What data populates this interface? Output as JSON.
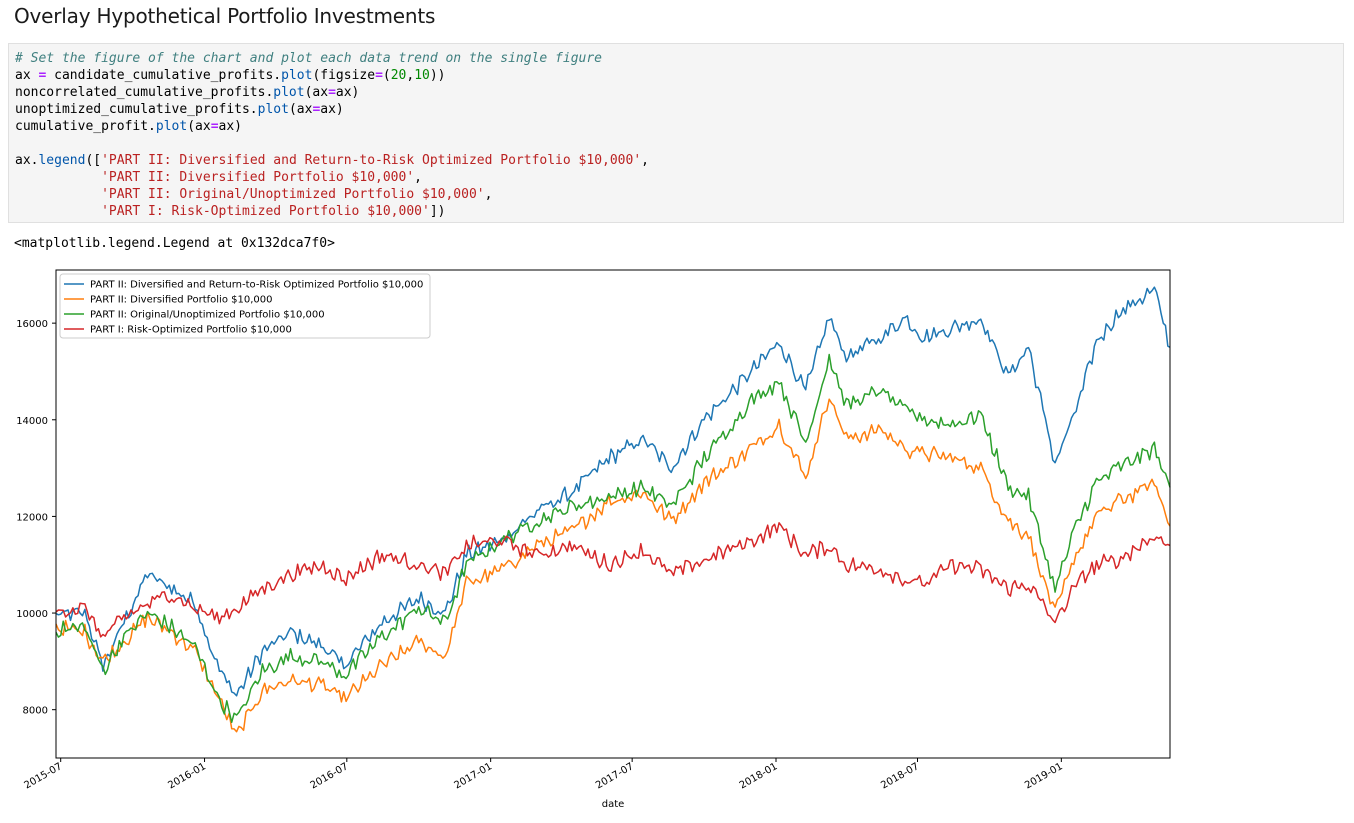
{
  "heading": "Overlay Hypothetical Portfolio Investments",
  "code_lines": [
    [
      {
        "t": "# Set the figure of the chart and plot each data trend on the single figure",
        "c": "cm"
      }
    ],
    [
      {
        "t": "ax "
      },
      {
        "t": "=",
        "c": "op"
      },
      {
        "t": " candidate_cumulative_profits."
      },
      {
        "t": "plot",
        "c": "nb"
      },
      {
        "t": "(figsize"
      },
      {
        "t": "=",
        "c": "op"
      },
      {
        "t": "("
      },
      {
        "t": "20",
        "c": "num"
      },
      {
        "t": ","
      },
      {
        "t": "10",
        "c": "num"
      },
      {
        "t": "))"
      }
    ],
    [
      {
        "t": "noncorrelated_cumulative_profits."
      },
      {
        "t": "plot",
        "c": "nb"
      },
      {
        "t": "(ax"
      },
      {
        "t": "=",
        "c": "op"
      },
      {
        "t": "ax)"
      }
    ],
    [
      {
        "t": "unoptimized_cumulative_profits."
      },
      {
        "t": "plot",
        "c": "nb"
      },
      {
        "t": "(ax"
      },
      {
        "t": "=",
        "c": "op"
      },
      {
        "t": "ax)"
      }
    ],
    [
      {
        "t": "cumulative_profit."
      },
      {
        "t": "plot",
        "c": "nb"
      },
      {
        "t": "(ax"
      },
      {
        "t": "=",
        "c": "op"
      },
      {
        "t": "ax)"
      }
    ],
    [],
    [
      {
        "t": "ax."
      },
      {
        "t": "legend",
        "c": "nb"
      },
      {
        "t": "(["
      },
      {
        "t": "'PART II: Diversified and Return-to-Risk Optimized Portfolio $10,000'",
        "c": "str"
      },
      {
        "t": ","
      }
    ],
    [
      {
        "t": "           "
      },
      {
        "t": "'PART II: Diversified Portfolio $10,000'",
        "c": "str"
      },
      {
        "t": ","
      }
    ],
    [
      {
        "t": "           "
      },
      {
        "t": "'PART II: Original/Unoptimized Portfolio $10,000'",
        "c": "str"
      },
      {
        "t": ","
      }
    ],
    [
      {
        "t": "           "
      },
      {
        "t": "'PART I: Risk-Optimized Portfolio $10,000'",
        "c": "str"
      },
      {
        "t": "])"
      }
    ]
  ],
  "output_text": "<matplotlib.legend.Legend at 0x132dca7f0>",
  "chart_data": {
    "type": "line",
    "xlabel": "date",
    "ylabel": "",
    "title": "",
    "x_range": [
      "2015-06-25",
      "2019-05-20"
    ],
    "ylim": [
      7000,
      17100
    ],
    "yticks": [
      8000,
      10000,
      12000,
      14000,
      16000
    ],
    "xticks": [
      "2015-07",
      "2016-01",
      "2016-07",
      "2017-01",
      "2017-07",
      "2018-01",
      "2018-07",
      "2019-01"
    ],
    "grid": false,
    "legend": "upper-left",
    "series": [
      {
        "name": "PART II: Diversified and Return-to-Risk Optimized Portfolio $10,000",
        "color": "#1f77b4",
        "points": [
          [
            "2015-06-25",
            9950
          ],
          [
            "2015-08-01",
            10000
          ],
          [
            "2015-08-24",
            8900
          ],
          [
            "2015-09-20",
            9800
          ],
          [
            "2015-10-20",
            10800
          ],
          [
            "2015-11-20",
            10500
          ],
          [
            "2015-12-20",
            10200
          ],
          [
            "2016-01-20",
            8800
          ],
          [
            "2016-02-11",
            8300
          ],
          [
            "2016-03-15",
            9200
          ],
          [
            "2016-04-20",
            9600
          ],
          [
            "2016-06-01",
            9300
          ],
          [
            "2016-06-27",
            8900
          ],
          [
            "2016-08-15",
            9800
          ],
          [
            "2016-10-01",
            10300
          ],
          [
            "2016-11-04",
            10000
          ],
          [
            "2016-12-01",
            11200
          ],
          [
            "2017-01-15",
            11500
          ],
          [
            "2017-03-01",
            12100
          ],
          [
            "2017-04-15",
            12500
          ],
          [
            "2017-06-01",
            13200
          ],
          [
            "2017-07-15",
            13600
          ],
          [
            "2017-08-20",
            13000
          ],
          [
            "2017-10-01",
            14000
          ],
          [
            "2017-12-01",
            15000
          ],
          [
            "2018-01-05",
            15600
          ],
          [
            "2018-02-08",
            14600
          ],
          [
            "2018-03-10",
            16100
          ],
          [
            "2018-04-01",
            15300
          ],
          [
            "2018-05-15",
            15700
          ],
          [
            "2018-06-15",
            16100
          ],
          [
            "2018-07-10",
            15700
          ],
          [
            "2018-08-15",
            15900
          ],
          [
            "2018-09-20",
            16100
          ],
          [
            "2018-10-25",
            14900
          ],
          [
            "2018-11-20",
            15500
          ],
          [
            "2018-12-24",
            13100
          ],
          [
            "2019-01-20",
            14200
          ],
          [
            "2019-02-15",
            15600
          ],
          [
            "2019-03-15",
            16200
          ],
          [
            "2019-04-30",
            16700
          ],
          [
            "2019-05-20",
            15500
          ]
        ]
      },
      {
        "name": "PART II: Diversified Portfolio $10,000",
        "color": "#ff7f0e",
        "points": [
          [
            "2015-06-25",
            9700
          ],
          [
            "2015-08-01",
            9600
          ],
          [
            "2015-08-24",
            9000
          ],
          [
            "2015-09-20",
            9400
          ],
          [
            "2015-10-20",
            9900
          ],
          [
            "2015-11-20",
            9600
          ],
          [
            "2015-12-20",
            9200
          ],
          [
            "2016-01-20",
            8200
          ],
          [
            "2016-02-11",
            7450
          ],
          [
            "2016-03-15",
            8400
          ],
          [
            "2016-04-20",
            8600
          ],
          [
            "2016-06-01",
            8500
          ],
          [
            "2016-06-27",
            8200
          ],
          [
            "2016-08-15",
            8900
          ],
          [
            "2016-10-01",
            9400
          ],
          [
            "2016-11-04",
            9100
          ],
          [
            "2016-12-01",
            10600
          ],
          [
            "2017-01-15",
            10900
          ],
          [
            "2017-03-01",
            11400
          ],
          [
            "2017-04-15",
            11700
          ],
          [
            "2017-06-01",
            12300
          ],
          [
            "2017-07-15",
            12500
          ],
          [
            "2017-08-20",
            11900
          ],
          [
            "2017-10-01",
            12700
          ],
          [
            "2017-12-01",
            13400
          ],
          [
            "2018-01-05",
            13900
          ],
          [
            "2018-02-08",
            12800
          ],
          [
            "2018-03-10",
            14500
          ],
          [
            "2018-04-01",
            13600
          ],
          [
            "2018-05-15",
            13800
          ],
          [
            "2018-06-15",
            13400
          ],
          [
            "2018-07-10",
            13300
          ],
          [
            "2018-08-15",
            13200
          ],
          [
            "2018-09-20",
            13000
          ],
          [
            "2018-10-25",
            11900
          ],
          [
            "2018-11-20",
            11600
          ],
          [
            "2018-12-24",
            10000
          ],
          [
            "2019-01-20",
            11200
          ],
          [
            "2019-02-15",
            12000
          ],
          [
            "2019-03-15",
            12300
          ],
          [
            "2019-04-30",
            12700
          ],
          [
            "2019-05-20",
            11800
          ]
        ]
      },
      {
        "name": "PART II: Original/Unoptimized Portfolio $10,000",
        "color": "#2ca02c",
        "points": [
          [
            "2015-06-25",
            9650
          ],
          [
            "2015-08-01",
            9700
          ],
          [
            "2015-08-24",
            8800
          ],
          [
            "2015-09-20",
            9500
          ],
          [
            "2015-10-20",
            10000
          ],
          [
            "2015-11-20",
            9700
          ],
          [
            "2015-12-20",
            9300
          ],
          [
            "2016-01-20",
            8200
          ],
          [
            "2016-02-11",
            7800
          ],
          [
            "2016-03-15",
            8800
          ],
          [
            "2016-04-20",
            9100
          ],
          [
            "2016-06-01",
            9000
          ],
          [
            "2016-06-27",
            8700
          ],
          [
            "2016-08-15",
            9500
          ],
          [
            "2016-10-01",
            10100
          ],
          [
            "2016-11-04",
            9800
          ],
          [
            "2016-12-01",
            11000
          ],
          [
            "2017-01-15",
            11500
          ],
          [
            "2017-03-01",
            11900
          ],
          [
            "2017-04-15",
            12200
          ],
          [
            "2017-06-01",
            12400
          ],
          [
            "2017-07-15",
            12600
          ],
          [
            "2017-08-20",
            12200
          ],
          [
            "2017-10-01",
            13200
          ],
          [
            "2017-12-01",
            14400
          ],
          [
            "2018-01-05",
            14800
          ],
          [
            "2018-02-08",
            13500
          ],
          [
            "2018-03-10",
            15300
          ],
          [
            "2018-04-01",
            14300
          ],
          [
            "2018-05-15",
            14600
          ],
          [
            "2018-06-15",
            14200
          ],
          [
            "2018-07-10",
            14000
          ],
          [
            "2018-08-15",
            13900
          ],
          [
            "2018-09-20",
            14100
          ],
          [
            "2018-10-25",
            12600
          ],
          [
            "2018-11-20",
            12400
          ],
          [
            "2018-12-24",
            10500
          ],
          [
            "2019-01-20",
            11800
          ],
          [
            "2019-02-15",
            12700
          ],
          [
            "2019-03-15",
            13000
          ],
          [
            "2019-04-30",
            13400
          ],
          [
            "2019-05-20",
            12600
          ]
        ]
      },
      {
        "name": "PART I: Risk-Optimized Portfolio $10,000",
        "color": "#d62728",
        "points": [
          [
            "2015-06-25",
            10050
          ],
          [
            "2015-08-01",
            10100
          ],
          [
            "2015-08-24",
            9500
          ],
          [
            "2015-09-20",
            9900
          ],
          [
            "2015-10-20",
            10200
          ],
          [
            "2015-11-20",
            10400
          ],
          [
            "2015-12-20",
            10100
          ],
          [
            "2016-01-20",
            9900
          ],
          [
            "2016-02-11",
            10100
          ],
          [
            "2016-03-15",
            10500
          ],
          [
            "2016-04-20",
            10800
          ],
          [
            "2016-06-01",
            11000
          ],
          [
            "2016-06-27",
            10700
          ],
          [
            "2016-08-15",
            11200
          ],
          [
            "2016-10-01",
            11000
          ],
          [
            "2016-11-04",
            10800
          ],
          [
            "2016-12-01",
            11400
          ],
          [
            "2017-01-15",
            11500
          ],
          [
            "2017-03-01",
            11200
          ],
          [
            "2017-04-15",
            11400
          ],
          [
            "2017-06-01",
            11000
          ],
          [
            "2017-07-15",
            11300
          ],
          [
            "2017-08-20",
            10800
          ],
          [
            "2017-10-01",
            11100
          ],
          [
            "2017-12-01",
            11500
          ],
          [
            "2018-01-05",
            11800
          ],
          [
            "2018-02-08",
            11200
          ],
          [
            "2018-03-10",
            11400
          ],
          [
            "2018-04-01",
            11000
          ],
          [
            "2018-05-15",
            10900
          ],
          [
            "2018-06-15",
            10700
          ],
          [
            "2018-07-10",
            10600
          ],
          [
            "2018-08-15",
            11000
          ],
          [
            "2018-09-20",
            10900
          ],
          [
            "2018-10-25",
            10500
          ],
          [
            "2018-11-20",
            10600
          ],
          [
            "2018-12-24",
            9800
          ],
          [
            "2019-01-20",
            10600
          ],
          [
            "2019-02-15",
            11000
          ],
          [
            "2019-03-15",
            11100
          ],
          [
            "2019-04-30",
            11600
          ],
          [
            "2019-05-20",
            11400
          ]
        ]
      }
    ]
  }
}
